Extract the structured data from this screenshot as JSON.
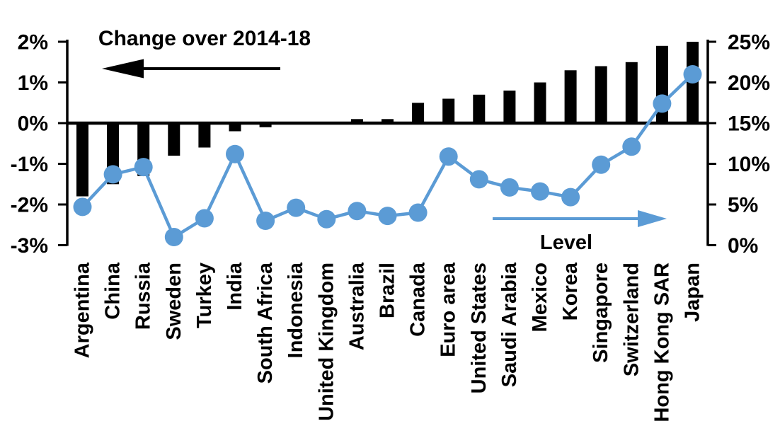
{
  "chart_data": {
    "type": "bar+line",
    "categories": [
      "Argentina",
      "China",
      "Russia",
      "Sweden",
      "Turkey",
      "India",
      "South Africa",
      "Indonesia",
      "United Kingdom",
      "Australia",
      "Brazil",
      "Canada",
      "Euro area",
      "United States",
      "Saudi Arabia",
      "Mexico",
      "Korea",
      "Singapore",
      "Switzerland",
      "Hong Kong SAR",
      "Japan"
    ],
    "series": [
      {
        "name": "Change over 2014-18",
        "type": "bar",
        "axis": "left",
        "unit": "%",
        "values": [
          -1.8,
          -1.5,
          -1.3,
          -0.8,
          -0.6,
          -0.2,
          -0.1,
          0.0,
          0.0,
          0.1,
          0.1,
          0.5,
          0.6,
          0.7,
          0.8,
          1.0,
          1.3,
          1.4,
          1.5,
          1.9,
          2.0
        ]
      },
      {
        "name": "Level",
        "type": "line",
        "axis": "right",
        "unit": "%",
        "values": [
          4.7,
          8.7,
          9.6,
          1.0,
          3.3,
          11.2,
          3.0,
          4.6,
          3.2,
          4.2,
          3.6,
          4.0,
          10.9,
          8.1,
          7.1,
          6.6,
          5.9,
          9.9,
          12.1,
          17.4,
          21.0
        ]
      }
    ],
    "left_axis": {
      "tick_labels": [
        "2%",
        "1%",
        "0%",
        "-1%",
        "-2%",
        "-3%"
      ],
      "tick_values": [
        2,
        1,
        0,
        -1,
        -2,
        -3
      ],
      "min": -3,
      "max": 2
    },
    "right_axis": {
      "tick_labels": [
        "25%",
        "20%",
        "15%",
        "10%",
        "5%",
        "0%"
      ],
      "tick_values": [
        25,
        20,
        15,
        10,
        5,
        0
      ],
      "min": 0,
      "max": 25
    },
    "grid": false,
    "legend_position": "in-plot arrow annotations"
  },
  "annotations": {
    "bar_series_label": "Change over 2014-18",
    "line_series_label": "Level"
  },
  "colors": {
    "bar": "#000000",
    "line": "#5B9BD5",
    "text": "#000000",
    "background": "#FFFFFF"
  }
}
